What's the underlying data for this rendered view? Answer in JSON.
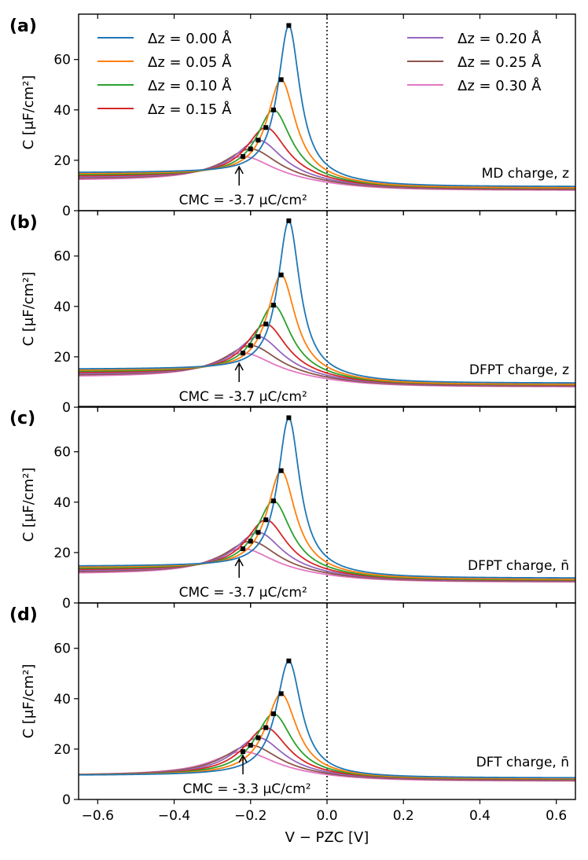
{
  "chart_data": [
    {
      "type": "line",
      "panel": "(a)",
      "ylabel": "C [μF/cm²]",
      "xlabel": "",
      "xlim": [
        -0.65,
        0.65
      ],
      "ylim": [
        0,
        78
      ],
      "yticks": [
        0,
        20,
        40,
        60
      ],
      "xticks": [
        -0.6,
        -0.4,
        -0.2,
        0.0,
        0.2,
        0.4,
        0.6
      ],
      "annotation": "MD charge, z",
      "cmc_label": "CMC = -3.7 μC/cm²",
      "cmc_x": -0.23,
      "vline_x": 0.0,
      "series": [
        {
          "name": "Δz = 0.00 Å",
          "peak_x": -0.1,
          "peak_y": 73.5,
          "left": 15.0,
          "right": 9.5,
          "width": 0.035
        },
        {
          "name": "Δz = 0.05 Å",
          "peak_x": -0.12,
          "peak_y": 52,
          "left": 14.5,
          "right": 9.0,
          "width": 0.045
        },
        {
          "name": "Δz = 0.10 Å",
          "peak_x": -0.14,
          "peak_y": 40,
          "left": 14.0,
          "right": 8.8,
          "width": 0.055
        },
        {
          "name": "Δz = 0.15 Å",
          "peak_x": -0.16,
          "peak_y": 33,
          "left": 13.5,
          "right": 8.6,
          "width": 0.065
        },
        {
          "name": "Δz = 0.20 Å",
          "peak_x": -0.18,
          "peak_y": 28,
          "left": 13.0,
          "right": 8.4,
          "width": 0.075
        },
        {
          "name": "Δz = 0.25 Å",
          "peak_x": -0.2,
          "peak_y": 24.5,
          "left": 12.5,
          "right": 8.2,
          "width": 0.085
        },
        {
          "name": "Δz = 0.30 Å",
          "peak_x": -0.22,
          "peak_y": 21.5,
          "left": 12.0,
          "right": 8.0,
          "width": 0.095
        }
      ]
    },
    {
      "type": "line",
      "panel": "(b)",
      "ylabel": "C [μF/cm²]",
      "xlabel": "",
      "xlim": [
        -0.65,
        0.65
      ],
      "ylim": [
        0,
        78
      ],
      "yticks": [
        0,
        20,
        40,
        60
      ],
      "xticks": [
        -0.6,
        -0.4,
        -0.2,
        0.0,
        0.2,
        0.4,
        0.6
      ],
      "annotation": "DFPT charge, z",
      "cmc_label": "CMC = -3.7 μC/cm²",
      "cmc_x": -0.23,
      "vline_x": 0.0,
      "series": [
        {
          "name": "Δz = 0.00 Å",
          "peak_x": -0.1,
          "peak_y": 74,
          "left": 15.0,
          "right": 9.5,
          "width": 0.035
        },
        {
          "name": "Δz = 0.05 Å",
          "peak_x": -0.12,
          "peak_y": 52.5,
          "left": 14.5,
          "right": 9.0,
          "width": 0.045
        },
        {
          "name": "Δz = 0.10 Å",
          "peak_x": -0.14,
          "peak_y": 40.5,
          "left": 14.0,
          "right": 8.8,
          "width": 0.055
        },
        {
          "name": "Δz = 0.15 Å",
          "peak_x": -0.16,
          "peak_y": 33,
          "left": 13.5,
          "right": 8.6,
          "width": 0.065
        },
        {
          "name": "Δz = 0.20 Å",
          "peak_x": -0.18,
          "peak_y": 28,
          "left": 13.0,
          "right": 8.4,
          "width": 0.075
        },
        {
          "name": "Δz = 0.25 Å",
          "peak_x": -0.2,
          "peak_y": 24.5,
          "left": 12.5,
          "right": 8.2,
          "width": 0.085
        },
        {
          "name": "Δz = 0.30 Å",
          "peak_x": -0.22,
          "peak_y": 21.5,
          "left": 12.0,
          "right": 8.0,
          "width": 0.095
        }
      ]
    },
    {
      "type": "line",
      "panel": "(c)",
      "ylabel": "C [μF/cm²]",
      "xlabel": "",
      "xlim": [
        -0.65,
        0.65
      ],
      "ylim": [
        0,
        78
      ],
      "yticks": [
        0,
        20,
        40,
        60
      ],
      "xticks": [
        -0.6,
        -0.4,
        -0.2,
        0.0,
        0.2,
        0.4,
        0.6
      ],
      "annotation": "DFPT charge, n̄",
      "cmc_label": "CMC = -3.7 μC/cm²",
      "cmc_x": -0.23,
      "vline_x": 0.0,
      "series": [
        {
          "name": "Δz = 0.00 Å",
          "peak_x": -0.1,
          "peak_y": 73.5,
          "left": 14.5,
          "right": 9.8,
          "width": 0.035
        },
        {
          "name": "Δz = 0.05 Å",
          "peak_x": -0.12,
          "peak_y": 52.5,
          "left": 14.0,
          "right": 9.3,
          "width": 0.045
        },
        {
          "name": "Δz = 0.10 Å",
          "peak_x": -0.14,
          "peak_y": 40.5,
          "left": 13.5,
          "right": 9.0,
          "width": 0.055
        },
        {
          "name": "Δz = 0.15 Å",
          "peak_x": -0.16,
          "peak_y": 33,
          "left": 13.0,
          "right": 8.8,
          "width": 0.065
        },
        {
          "name": "Δz = 0.20 Å",
          "peak_x": -0.18,
          "peak_y": 28,
          "left": 12.5,
          "right": 8.6,
          "width": 0.075
        },
        {
          "name": "Δz = 0.25 Å",
          "peak_x": -0.2,
          "peak_y": 24.5,
          "left": 12.0,
          "right": 8.4,
          "width": 0.085
        },
        {
          "name": "Δz = 0.30 Å",
          "peak_x": -0.22,
          "peak_y": 21.5,
          "left": 11.5,
          "right": 8.2,
          "width": 0.095
        }
      ]
    },
    {
      "type": "line",
      "panel": "(d)",
      "ylabel": "C [μF/cm²]",
      "xlabel": "V − PZC [V]",
      "xlim": [
        -0.65,
        0.65
      ],
      "ylim": [
        0,
        78
      ],
      "yticks": [
        0,
        20,
        40,
        60
      ],
      "xticks": [
        -0.6,
        -0.4,
        -0.2,
        0.0,
        0.2,
        0.4,
        0.6
      ],
      "xticklabels": [
        "−0.6",
        "−0.4",
        "−0.2",
        "0.0",
        "0.2",
        "0.4",
        "0.6"
      ],
      "annotation": "DFT charge, n̄",
      "cmc_label": "CMC = -3.3 μC/cm²",
      "cmc_x": -0.22,
      "vline_x": 0.0,
      "series": [
        {
          "name": "Δz = 0.00 Å",
          "peak_x": -0.1,
          "peak_y": 55,
          "left": 9.5,
          "right": 8.5,
          "width": 0.04
        },
        {
          "name": "Δz = 0.05 Å",
          "peak_x": -0.12,
          "peak_y": 42,
          "left": 9.5,
          "right": 8.2,
          "width": 0.05
        },
        {
          "name": "Δz = 0.10 Å",
          "peak_x": -0.14,
          "peak_y": 34,
          "left": 9.5,
          "right": 8.0,
          "width": 0.06
        },
        {
          "name": "Δz = 0.15 Å",
          "peak_x": -0.16,
          "peak_y": 28.5,
          "left": 9.5,
          "right": 7.8,
          "width": 0.07
        },
        {
          "name": "Δz = 0.20 Å",
          "peak_x": -0.18,
          "peak_y": 24.5,
          "left": 9.5,
          "right": 7.6,
          "width": 0.08
        },
        {
          "name": "Δz = 0.25 Å",
          "peak_x": -0.2,
          "peak_y": 21.5,
          "left": 9.5,
          "right": 7.4,
          "width": 0.09
        },
        {
          "name": "Δz = 0.30 Å",
          "peak_x": -0.22,
          "peak_y": 19,
          "left": 9.5,
          "right": 7.2,
          "width": 0.1
        }
      ]
    }
  ],
  "colors": [
    "#1f77b4",
    "#ff7f0e",
    "#2ca02c",
    "#d62728",
    "#9467bd",
    "#8c564b",
    "#e377c2"
  ],
  "legend": {
    "left": [
      "Δz = 0.00 Å",
      "Δz = 0.05 Å",
      "Δz = 0.10 Å",
      "Δz = 0.15 Å"
    ],
    "right": [
      "Δz = 0.20 Å",
      "Δz = 0.25 Å",
      "Δz = 0.30 Å"
    ]
  }
}
